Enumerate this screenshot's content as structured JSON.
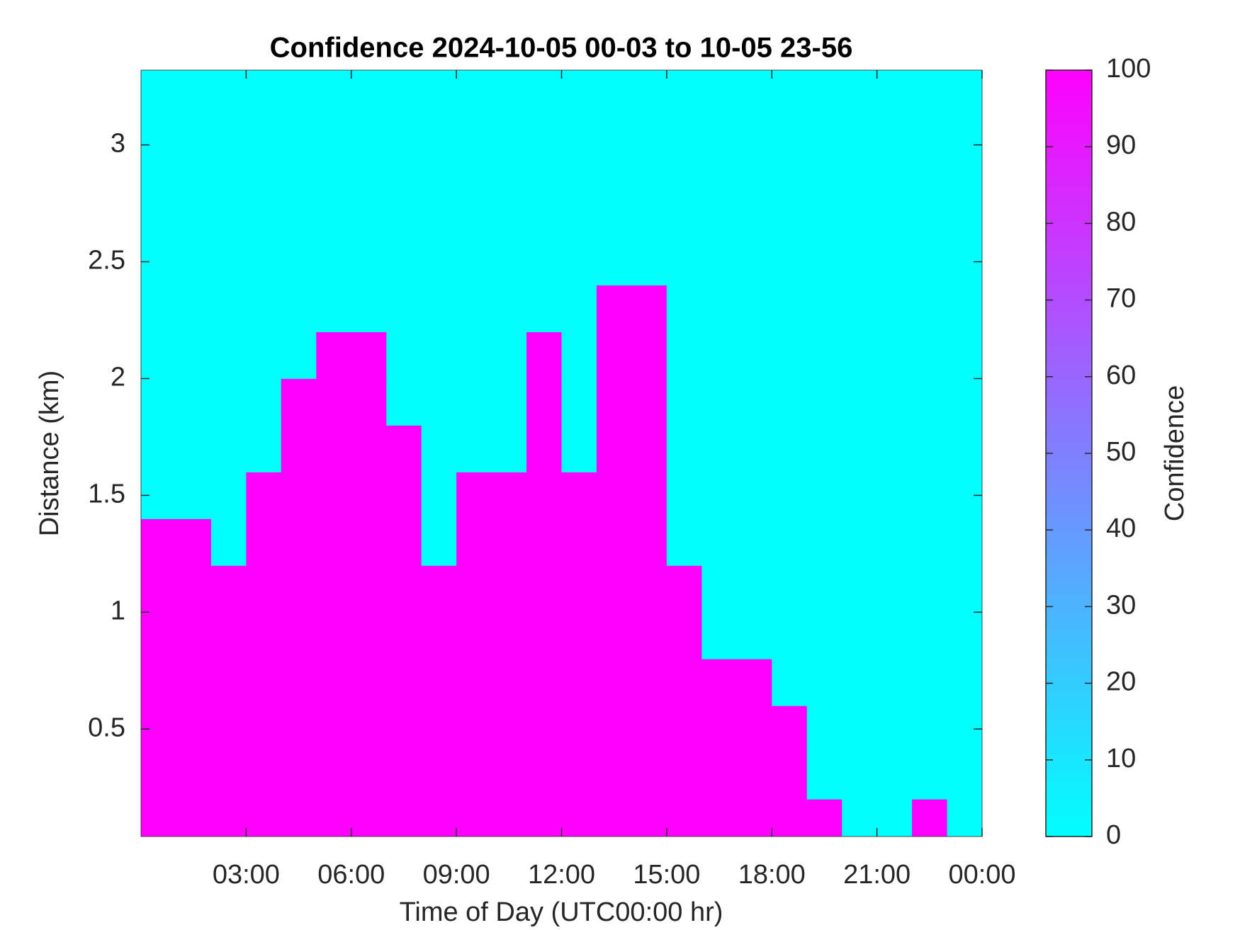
{
  "chart_data": {
    "type": "heatmap",
    "title": "Confidence 2024-10-05 00-03 to 10-05 23-56",
    "xlabel": "Time of Day (UTC00:00 hr)",
    "ylabel": "Distance (km)",
    "colorbar_label": "Confidence",
    "colormap": [
      "#00ffff",
      "#ff00ff"
    ],
    "x": [
      0.5,
      1.5,
      2.5,
      3.5,
      4.5,
      5.5,
      6.5,
      7.5,
      8.5,
      9.5,
      10.5,
      11.5,
      12.5,
      13.5,
      14.5,
      15.5,
      16.5,
      17.5,
      18.5,
      19.5,
      20.5,
      21.5,
      22.5,
      23.5
    ],
    "y": [
      0.1,
      0.3,
      0.5,
      0.7,
      0.9,
      1.1,
      1.3,
      1.5,
      1.7,
      1.9,
      2.1,
      2.3,
      2.5,
      2.7,
      2.9,
      3.1,
      3.3
    ],
    "z": [
      [
        100,
        100,
        100,
        100,
        100,
        100,
        100,
        100,
        100,
        100,
        100,
        100,
        100,
        100,
        100,
        100,
        100,
        100,
        100,
        100,
        0,
        0,
        100,
        0
      ],
      [
        100,
        100,
        100,
        100,
        100,
        100,
        100,
        100,
        100,
        100,
        100,
        100,
        100,
        100,
        100,
        100,
        100,
        100,
        100,
        0,
        0,
        0,
        0,
        0
      ],
      [
        100,
        100,
        100,
        100,
        100,
        100,
        100,
        100,
        100,
        100,
        100,
        100,
        100,
        100,
        100,
        100,
        100,
        100,
        100,
        0,
        0,
        0,
        0,
        0
      ],
      [
        100,
        100,
        100,
        100,
        100,
        100,
        100,
        100,
        100,
        100,
        100,
        100,
        100,
        100,
        100,
        100,
        100,
        100,
        0,
        0,
        0,
        0,
        0,
        0
      ],
      [
        100,
        100,
        100,
        100,
        100,
        100,
        100,
        100,
        100,
        100,
        100,
        100,
        100,
        100,
        100,
        100,
        0,
        0,
        0,
        0,
        0,
        0,
        0,
        0
      ],
      [
        100,
        100,
        100,
        100,
        100,
        100,
        100,
        100,
        100,
        100,
        100,
        100,
        100,
        100,
        100,
        100,
        0,
        0,
        0,
        0,
        0,
        0,
        0,
        0
      ],
      [
        100,
        100,
        0,
        100,
        100,
        100,
        100,
        100,
        0,
        100,
        100,
        100,
        100,
        100,
        100,
        0,
        0,
        0,
        0,
        0,
        0,
        0,
        0,
        0
      ],
      [
        0,
        0,
        0,
        100,
        100,
        100,
        100,
        100,
        0,
        100,
        100,
        100,
        100,
        100,
        100,
        0,
        0,
        0,
        0,
        0,
        0,
        0,
        0,
        0
      ],
      [
        0,
        0,
        0,
        0,
        100,
        100,
        100,
        100,
        0,
        0,
        0,
        100,
        0,
        100,
        100,
        0,
        0,
        0,
        0,
        0,
        0,
        0,
        0,
        0
      ],
      [
        0,
        0,
        0,
        0,
        100,
        100,
        100,
        0,
        0,
        0,
        0,
        100,
        0,
        100,
        100,
        0,
        0,
        0,
        0,
        0,
        0,
        0,
        0,
        0
      ],
      [
        0,
        0,
        0,
        0,
        0,
        100,
        100,
        0,
        0,
        0,
        0,
        100,
        0,
        100,
        100,
        0,
        0,
        0,
        0,
        0,
        0,
        0,
        0,
        0
      ],
      [
        0,
        0,
        0,
        0,
        0,
        0,
        0,
        0,
        0,
        0,
        0,
        0,
        0,
        100,
        100,
        0,
        0,
        0,
        0,
        0,
        0,
        0,
        0,
        0
      ],
      [
        0,
        0,
        0,
        0,
        0,
        0,
        0,
        0,
        0,
        0,
        0,
        0,
        0,
        0,
        0,
        0,
        0,
        0,
        0,
        0,
        0,
        0,
        0,
        0
      ],
      [
        0,
        0,
        0,
        0,
        0,
        0,
        0,
        0,
        0,
        0,
        0,
        0,
        0,
        0,
        0,
        0,
        0,
        0,
        0,
        0,
        0,
        0,
        0,
        0
      ],
      [
        0,
        0,
        0,
        0,
        0,
        0,
        0,
        0,
        0,
        0,
        0,
        0,
        0,
        0,
        0,
        0,
        0,
        0,
        0,
        0,
        0,
        0,
        0,
        0
      ],
      [
        0,
        0,
        0,
        0,
        0,
        0,
        0,
        0,
        0,
        0,
        0,
        0,
        0,
        0,
        0,
        0,
        0,
        0,
        0,
        0,
        0,
        0,
        0,
        0
      ],
      [
        0,
        0,
        0,
        0,
        0,
        0,
        0,
        0,
        0,
        0,
        0,
        0,
        0,
        0,
        0,
        0,
        0,
        0,
        0,
        0,
        0,
        0,
        0,
        0
      ]
    ],
    "xlim": [
      0,
      24
    ],
    "xticks": [
      {
        "value": 3,
        "label": "03:00"
      },
      {
        "value": 6,
        "label": "06:00"
      },
      {
        "value": 9,
        "label": "09:00"
      },
      {
        "value": 12,
        "label": "12:00"
      },
      {
        "value": 15,
        "label": "15:00"
      },
      {
        "value": 18,
        "label": "18:00"
      },
      {
        "value": 21,
        "label": "21:00"
      },
      {
        "value": 24,
        "label": "00:00"
      }
    ],
    "ylim": [
      0.04,
      3.32
    ],
    "yticks": [
      0.5,
      1,
      1.5,
      2,
      2.5,
      3
    ],
    "clim": [
      0,
      100
    ],
    "cticks": [
      0,
      10,
      20,
      30,
      40,
      50,
      60,
      70,
      80,
      90,
      100
    ]
  }
}
